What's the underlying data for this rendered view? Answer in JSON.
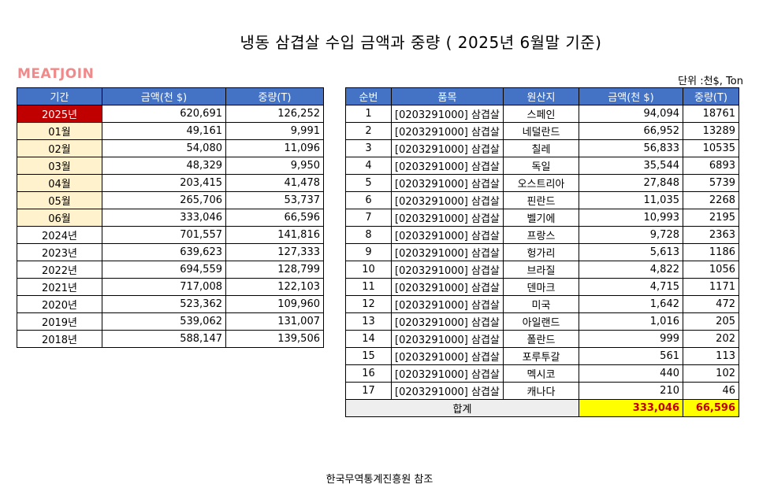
{
  "title": "냉동  삼겹살  수입 금액과 중량 ( 2025년 6월말 기준)",
  "logo": "MEATJOIN",
  "unit": "단위 :천$, Ton",
  "source": "한국무역통계진흥원 참조",
  "left_table": {
    "headers": [
      "기간",
      "금액(천 $)",
      "중량(T)"
    ],
    "rows": [
      {
        "period": "2025년",
        "amount": "620,691",
        "weight": "126,252"
      },
      {
        "period": "01월",
        "amount": "49,161",
        "weight": "9,991"
      },
      {
        "period": "02월",
        "amount": "54,080",
        "weight": "11,096"
      },
      {
        "period": "03월",
        "amount": "48,329",
        "weight": "9,950"
      },
      {
        "period": "04월",
        "amount": "203,415",
        "weight": "41,478"
      },
      {
        "period": "05월",
        "amount": "265,706",
        "weight": "53,737"
      },
      {
        "period": "06월",
        "amount": "333,046",
        "weight": "66,596"
      },
      {
        "period": "2024년",
        "amount": "701,557",
        "weight": "141,816"
      },
      {
        "period": "2023년",
        "amount": "639,623",
        "weight": "127,333"
      },
      {
        "period": "2022년",
        "amount": "694,559",
        "weight": "128,799"
      },
      {
        "period": "2021년",
        "amount": "717,008",
        "weight": "122,103"
      },
      {
        "period": "2020년",
        "amount": "523,362",
        "weight": "109,960"
      },
      {
        "period": "2019년",
        "amount": "539,062",
        "weight": "131,007"
      },
      {
        "period": "2018년",
        "amount": "588,147",
        "weight": "139,506"
      }
    ]
  },
  "right_table": {
    "headers": [
      "순번",
      "품목",
      "원산지",
      "금액(천 $)",
      "중량(T)"
    ],
    "rows": [
      {
        "no": "1",
        "item": "[0203291000] 삼겹살",
        "origin": "스페인",
        "amount": "94,094",
        "weight": "18761"
      },
      {
        "no": "2",
        "item": "[0203291000] 삼겹살",
        "origin": "네덜란드",
        "amount": "66,952",
        "weight": "13289"
      },
      {
        "no": "3",
        "item": "[0203291000] 삼겹살",
        "origin": "칠레",
        "amount": "56,833",
        "weight": "10535"
      },
      {
        "no": "4",
        "item": "[0203291000] 삼겹살",
        "origin": "독일",
        "amount": "35,544",
        "weight": "6893"
      },
      {
        "no": "5",
        "item": "[0203291000] 삼겹살",
        "origin": "오스트리아",
        "amount": "27,848",
        "weight": "5739"
      },
      {
        "no": "6",
        "item": "[0203291000] 삼겹살",
        "origin": "핀란드",
        "amount": "11,035",
        "weight": "2268"
      },
      {
        "no": "7",
        "item": "[0203291000] 삼겹살",
        "origin": "벨기에",
        "amount": "10,993",
        "weight": "2195"
      },
      {
        "no": "8",
        "item": "[0203291000] 삼겹살",
        "origin": "프랑스",
        "amount": "9,728",
        "weight": "2363"
      },
      {
        "no": "9",
        "item": "[0203291000] 삼겹살",
        "origin": "헝가리",
        "amount": "5,613",
        "weight": "1186"
      },
      {
        "no": "10",
        "item": "[0203291000] 삼겹살",
        "origin": "브라질",
        "amount": "4,822",
        "weight": "1056"
      },
      {
        "no": "11",
        "item": "[0203291000] 삼겹살",
        "origin": "덴마크",
        "amount": "4,715",
        "weight": "1171"
      },
      {
        "no": "12",
        "item": "[0203291000] 삼겹살",
        "origin": "미국",
        "amount": "1,642",
        "weight": "472"
      },
      {
        "no": "13",
        "item": "[0203291000] 삼겹살",
        "origin": "아일랜드",
        "amount": "1,016",
        "weight": "205"
      },
      {
        "no": "14",
        "item": "[0203291000] 삼겹살",
        "origin": "폴란드",
        "amount": "999",
        "weight": "202"
      },
      {
        "no": "15",
        "item": "[0203291000] 삼겹살",
        "origin": "포루투갈",
        "amount": "561",
        "weight": "113"
      },
      {
        "no": "16",
        "item": "[0203291000] 삼겹살",
        "origin": "멕시코",
        "amount": "440",
        "weight": "102"
      },
      {
        "no": "17",
        "item": "[0203291000] 삼겹살",
        "origin": "캐나다",
        "amount": "210",
        "weight": "46"
      }
    ],
    "total": {
      "label": "합계",
      "amount": "333,046",
      "weight": "66,596"
    }
  },
  "colors": {
    "header_blue": "#4472c4",
    "highlight_red": "#c00000",
    "month_tan": "#fff2cc",
    "total_yellow": "#ffff00",
    "logo_pink": "#f08a8a"
  }
}
